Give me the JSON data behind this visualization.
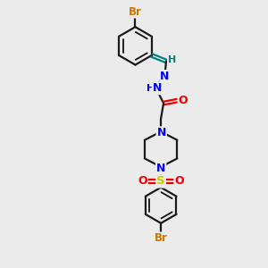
{
  "background_color": "#ebebeb",
  "bond_color": "#1a1a1a",
  "colors": {
    "Br": "#cc7700",
    "N": "#0000ee",
    "O": "#ee0000",
    "S": "#cccc00",
    "H_imine": "#008080",
    "C_bond": "#1a1a1a"
  },
  "figsize": [
    3.0,
    3.0
  ],
  "dpi": 100
}
